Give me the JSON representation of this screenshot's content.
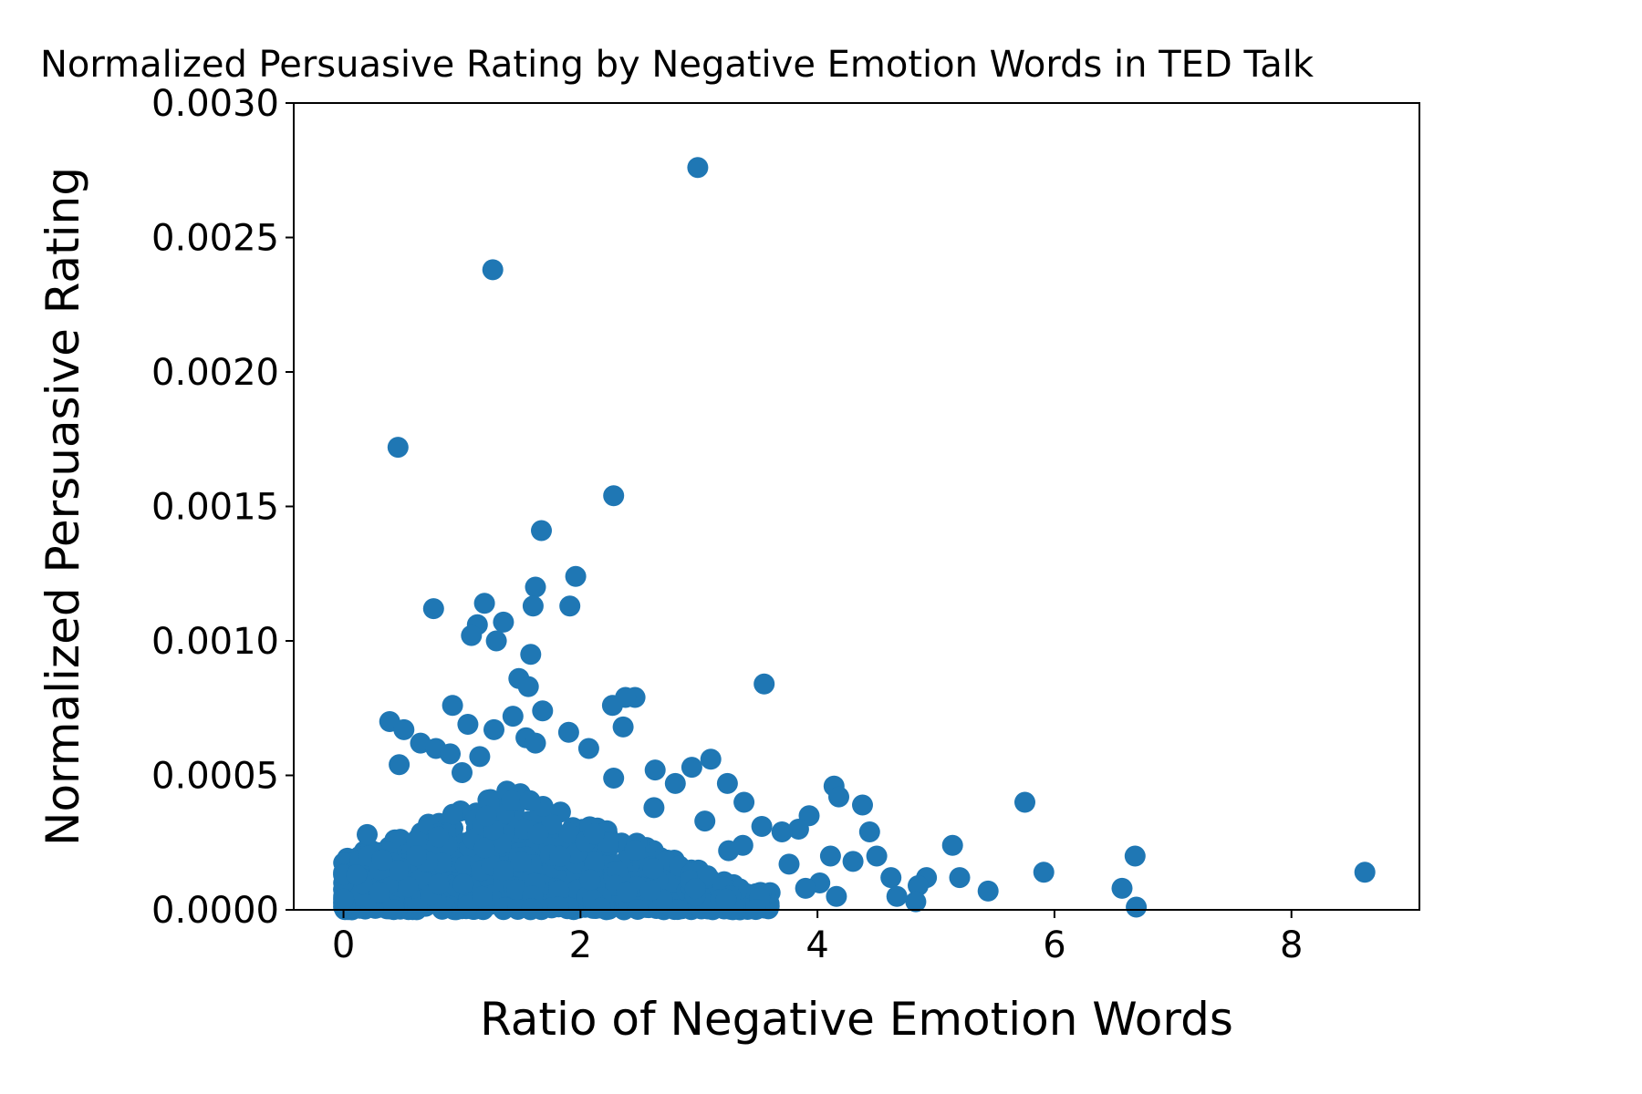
{
  "chart_data": {
    "type": "scatter",
    "title": "Normalized Persuasive Rating by Negative Emotion Words in TED Talk",
    "xlabel": "Ratio of Negative Emotion Words",
    "ylabel": "Normalized Persuasive Rating",
    "xlim": [
      -0.42,
      9.08
    ],
    "ylim": [
      0,
      0.003
    ],
    "x_ticks": [
      0,
      2,
      4,
      6,
      8
    ],
    "x_tick_labels": [
      "0",
      "2",
      "4",
      "6",
      "8"
    ],
    "y_ticks": [
      0,
      0.0005,
      0.001,
      0.0015,
      0.002,
      0.0025,
      0.003
    ],
    "y_tick_labels": [
      "0.0000",
      "0.0005",
      "0.0010",
      "0.0015",
      "0.0020",
      "0.0025",
      "0.0030"
    ],
    "grid": false,
    "legend": "none",
    "colors": {
      "points": "#1f77b4",
      "axes": "#000000"
    },
    "series": [
      {
        "points": [
          [
            2.99,
            0.00276
          ],
          [
            1.26,
            0.00238
          ],
          [
            0.46,
            0.00172
          ],
          [
            2.28,
            0.00154
          ],
          [
            1.67,
            0.00141
          ],
          [
            1.96,
            0.00124
          ],
          [
            1.62,
            0.0012
          ],
          [
            1.19,
            0.00114
          ],
          [
            0.76,
            0.00112
          ],
          [
            1.6,
            0.00113
          ],
          [
            1.91,
            0.00113
          ],
          [
            1.35,
            0.00107
          ],
          [
            1.13,
            0.00106
          ],
          [
            1.08,
            0.00102
          ],
          [
            1.29,
            0.001
          ],
          [
            1.58,
            0.00095
          ],
          [
            1.48,
            0.00086
          ],
          [
            1.56,
            0.00083
          ],
          [
            3.55,
            0.00084
          ],
          [
            2.46,
            0.00079
          ],
          [
            2.38,
            0.00079
          ],
          [
            2.27,
            0.00076
          ],
          [
            0.92,
            0.00076
          ],
          [
            1.68,
            0.00074
          ],
          [
            1.43,
            0.00072
          ],
          [
            0.39,
            0.0007
          ],
          [
            1.05,
            0.00069
          ],
          [
            2.36,
            0.00068
          ],
          [
            0.51,
            0.00067
          ],
          [
            1.27,
            0.00067
          ],
          [
            1.9,
            0.00066
          ],
          [
            1.54,
            0.00064
          ],
          [
            1.62,
            0.00062
          ],
          [
            0.65,
            0.00062
          ],
          [
            0.78,
            0.0006
          ],
          [
            2.07,
            0.0006
          ],
          [
            0.9,
            0.00058
          ],
          [
            1.15,
            0.00057
          ],
          [
            3.1,
            0.00056
          ],
          [
            0.47,
            0.00054
          ],
          [
            2.94,
            0.00053
          ],
          [
            2.63,
            0.00052
          ],
          [
            1.0,
            0.00051
          ],
          [
            2.28,
            0.00049
          ],
          [
            2.8,
            0.00047
          ],
          [
            3.24,
            0.00047
          ],
          [
            4.14,
            0.00046
          ],
          [
            4.18,
            0.00042
          ],
          [
            3.38,
            0.0004
          ],
          [
            4.38,
            0.00039
          ],
          [
            5.75,
            0.0004
          ],
          [
            2.62,
            0.00038
          ],
          [
            3.93,
            0.00035
          ],
          [
            3.05,
            0.00033
          ],
          [
            3.53,
            0.00031
          ],
          [
            3.84,
            0.0003
          ],
          [
            3.7,
            0.00029
          ],
          [
            4.44,
            0.00029
          ],
          [
            0.2,
            0.00028
          ],
          [
            3.37,
            0.00024
          ],
          [
            5.14,
            0.00024
          ],
          [
            3.25,
            0.00022
          ],
          [
            4.11,
            0.0002
          ],
          [
            4.5,
            0.0002
          ],
          [
            6.68,
            0.0002
          ],
          [
            4.3,
            0.00018
          ],
          [
            3.76,
            0.00017
          ],
          [
            4.62,
            0.00012
          ],
          [
            4.92,
            0.00012
          ],
          [
            5.2,
            0.00012
          ],
          [
            5.91,
            0.00014
          ],
          [
            8.62,
            0.00014
          ],
          [
            0.0,
            0.00013
          ],
          [
            4.85,
            9e-05
          ],
          [
            4.02,
            0.0001
          ],
          [
            6.57,
            8e-05
          ],
          [
            5.44,
            7e-05
          ],
          [
            4.83,
            3e-05
          ],
          [
            6.69,
            1e-05
          ],
          [
            0.0,
            4e-05
          ],
          [
            0.11,
            0.00013
          ],
          [
            4.16,
            5e-05
          ],
          [
            3.9,
            8e-05
          ],
          [
            4.67,
            5e-05
          ]
        ],
        "dense_cluster": {
          "description_source": "visual estimate of overlapping points",
          "x_range": [
            0.0,
            3.6
          ],
          "y_range": [
            0.0,
            0.00045
          ]
        }
      }
    ]
  }
}
